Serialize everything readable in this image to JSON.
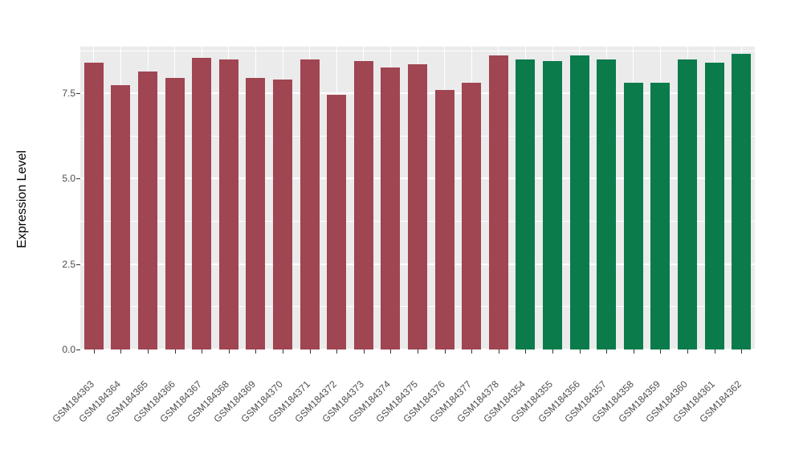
{
  "chart_data": {
    "type": "bar",
    "title": "",
    "xlabel": "",
    "ylabel": "Expression Level",
    "ylim": [
      0,
      8.87
    ],
    "grid": true,
    "legend": "none",
    "yticks": [
      {
        "value": 0.0,
        "label": "0.0"
      },
      {
        "value": 2.5,
        "label": "2.5"
      },
      {
        "value": 5.0,
        "label": "5.0"
      },
      {
        "value": 7.5,
        "label": "7.5"
      }
    ],
    "yticks_minor": [
      1.25,
      3.75,
      6.25,
      8.75
    ],
    "categories": [
      "GSM184363",
      "GSM184364",
      "GSM184365",
      "GSM184366",
      "GSM184367",
      "GSM184368",
      "GSM184369",
      "GSM184370",
      "GSM184371",
      "GSM184372",
      "GSM184373",
      "GSM184374",
      "GSM184375",
      "GSM184376",
      "GSM184377",
      "GSM184378",
      "GSM184354",
      "GSM184355",
      "GSM184356",
      "GSM184357",
      "GSM184358",
      "GSM184359",
      "GSM184360",
      "GSM184361",
      "GSM184362"
    ],
    "values": [
      8.4,
      7.75,
      8.15,
      7.95,
      8.55,
      8.5,
      7.95,
      7.9,
      8.5,
      7.45,
      8.45,
      8.25,
      8.35,
      7.6,
      7.8,
      8.6,
      8.5,
      8.45,
      8.6,
      8.5,
      7.8,
      7.8,
      8.5,
      8.4,
      8.65
    ],
    "bar_colors": [
      "#A04552",
      "#A04552",
      "#A04552",
      "#A04552",
      "#A04552",
      "#A04552",
      "#A04552",
      "#A04552",
      "#A04552",
      "#A04552",
      "#A04552",
      "#A04552",
      "#A04552",
      "#A04552",
      "#A04552",
      "#A04552",
      "#0B7B4B",
      "#0B7B4B",
      "#0B7B4B",
      "#0B7B4B",
      "#0B7B4B",
      "#0B7B4B",
      "#0B7B4B",
      "#0B7B4B",
      "#0B7B4B"
    ],
    "group_colors": {
      "group1": "#A04552",
      "group2": "#0B7B4B"
    },
    "panel_background": "#EBEBEB",
    "grid_color": "#FFFFFF"
  }
}
